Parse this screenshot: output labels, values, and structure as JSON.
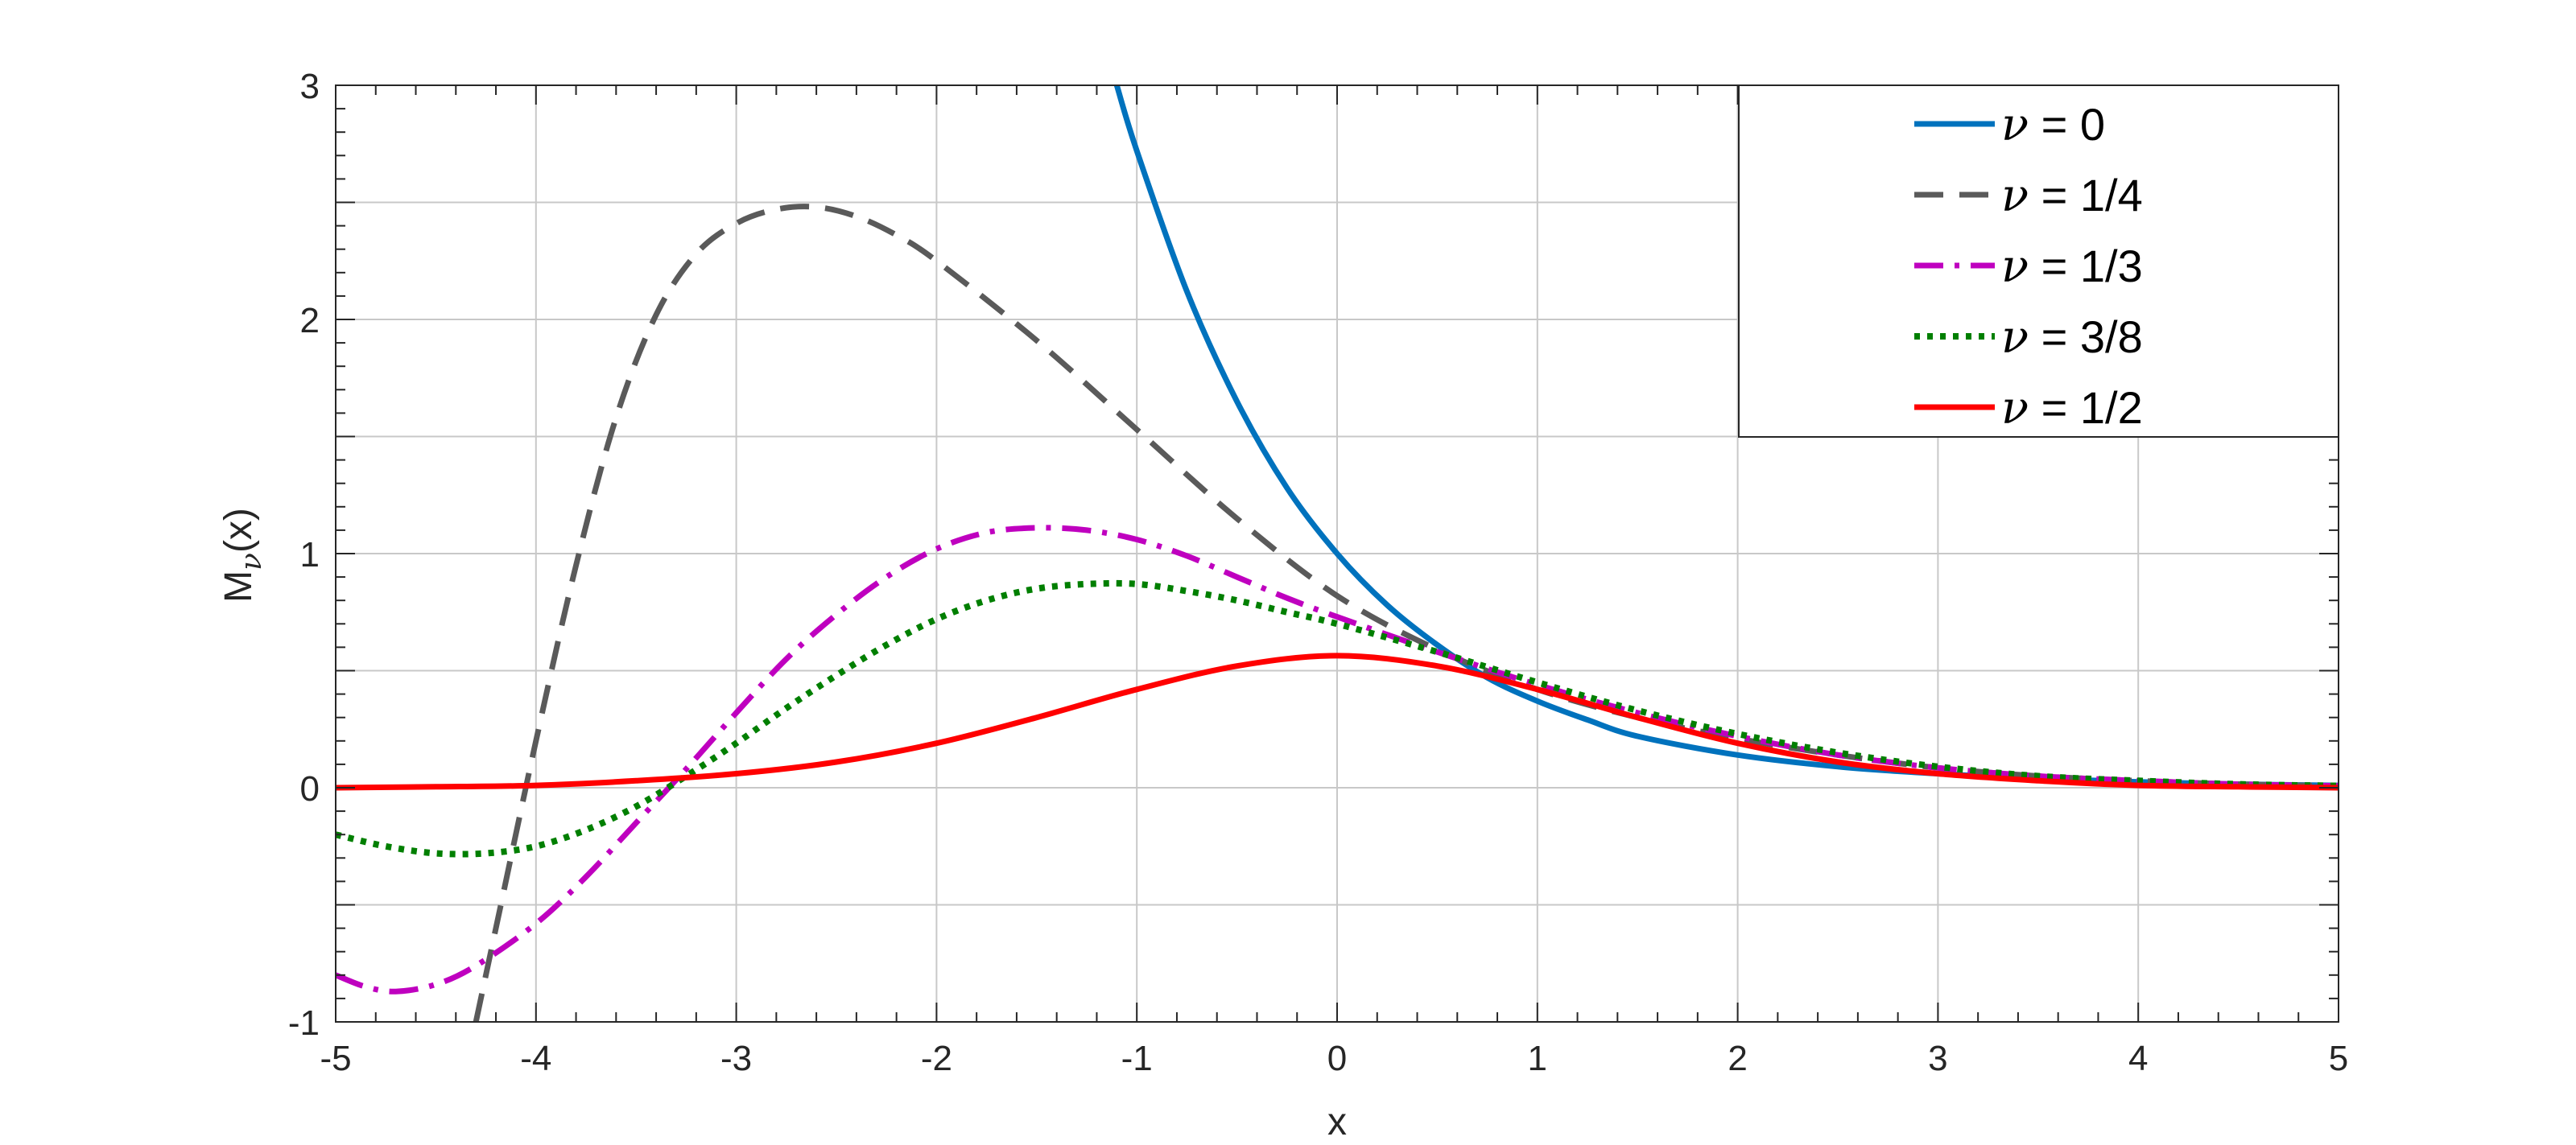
{
  "chart_data": {
    "type": "line",
    "title": "",
    "xlabel": "x",
    "ylabel": "M",
    "ylabel_subscript": "ν",
    "ylabel_suffix": "(x)",
    "xlim": [
      -5,
      5
    ],
    "ylim": [
      -1,
      3
    ],
    "x_ticks": [
      -5,
      -4,
      -3,
      -2,
      -1,
      0,
      1,
      2,
      3,
      4,
      5
    ],
    "y_ticks": [
      -1,
      0,
      1,
      2,
      3
    ],
    "x_tick_labels": [
      "-5",
      "-4",
      "-3",
      "-2",
      "-1",
      "0",
      "1",
      "2",
      "3",
      "4",
      "5"
    ],
    "y_tick_labels": [
      "-1",
      "0",
      "1",
      "2",
      "3"
    ],
    "grid": true,
    "minor_grid_y": [
      -0.5,
      0.5,
      1.5,
      2.5
    ],
    "legend_position": "top-right",
    "legend_symbol": "ν",
    "series": [
      {
        "name": "= 0",
        "color": "#0072BD",
        "style": "solid",
        "points": [
          [
            -1.1,
            3.0
          ],
          [
            -1.0,
            2.72
          ],
          [
            -0.75,
            2.12
          ],
          [
            -0.5,
            1.65
          ],
          [
            -0.25,
            1.28
          ],
          [
            0,
            1.0
          ],
          [
            0.25,
            0.78
          ],
          [
            0.5,
            0.61
          ],
          [
            0.75,
            0.47
          ],
          [
            1.0,
            0.37
          ],
          [
            1.25,
            0.29
          ],
          [
            1.5,
            0.22
          ],
          [
            2.0,
            0.14
          ],
          [
            2.5,
            0.09
          ],
          [
            3.0,
            0.06
          ],
          [
            3.5,
            0.04
          ],
          [
            4.0,
            0.025
          ],
          [
            4.5,
            0.015
          ],
          [
            5.0,
            0.01
          ]
        ]
      },
      {
        "name": "= 1/4",
        "color": "#5a5a5a",
        "style": "dashed",
        "points": [
          [
            -4.3,
            -1.0
          ],
          [
            -4.2,
            -0.6
          ],
          [
            -4.0,
            0.2
          ],
          [
            -3.8,
            0.95
          ],
          [
            -3.6,
            1.58
          ],
          [
            -3.4,
            2.02
          ],
          [
            -3.2,
            2.28
          ],
          [
            -3.0,
            2.41
          ],
          [
            -2.8,
            2.47
          ],
          [
            -2.6,
            2.48
          ],
          [
            -2.4,
            2.44
          ],
          [
            -2.2,
            2.36
          ],
          [
            -2.0,
            2.25
          ],
          [
            -1.5,
            1.91
          ],
          [
            -1.0,
            1.53
          ],
          [
            -0.5,
            1.15
          ],
          [
            0,
            0.82
          ],
          [
            0.5,
            0.59
          ],
          [
            1.0,
            0.42
          ],
          [
            1.5,
            0.3
          ],
          [
            2.0,
            0.21
          ],
          [
            2.5,
            0.14
          ],
          [
            3.0,
            0.085
          ],
          [
            3.5,
            0.05
          ],
          [
            4.0,
            0.03
          ],
          [
            4.5,
            0.015
          ],
          [
            5.0,
            0.008
          ]
        ]
      },
      {
        "name": "= 1/3",
        "color": "#BF00BF",
        "style": "dashdot",
        "points": [
          [
            -5.0,
            -0.8
          ],
          [
            -4.85,
            -0.85
          ],
          [
            -4.7,
            -0.87
          ],
          [
            -4.5,
            -0.84
          ],
          [
            -4.3,
            -0.76
          ],
          [
            -4.0,
            -0.58
          ],
          [
            -3.75,
            -0.38
          ],
          [
            -3.5,
            -0.15
          ],
          [
            -3.25,
            0.08
          ],
          [
            -3.0,
            0.32
          ],
          [
            -2.75,
            0.55
          ],
          [
            -2.5,
            0.74
          ],
          [
            -2.25,
            0.9
          ],
          [
            -2.0,
            1.02
          ],
          [
            -1.75,
            1.09
          ],
          [
            -1.5,
            1.11
          ],
          [
            -1.25,
            1.1
          ],
          [
            -1.0,
            1.06
          ],
          [
            -0.75,
            0.99
          ],
          [
            -0.5,
            0.9
          ],
          [
            -0.25,
            0.81
          ],
          [
            0,
            0.73
          ],
          [
            0.5,
            0.58
          ],
          [
            1.0,
            0.44
          ],
          [
            1.5,
            0.32
          ],
          [
            2.0,
            0.22
          ],
          [
            2.5,
            0.14
          ],
          [
            3.0,
            0.085
          ],
          [
            3.5,
            0.05
          ],
          [
            4.0,
            0.03
          ],
          [
            4.5,
            0.015
          ],
          [
            5.0,
            0.008
          ]
        ]
      },
      {
        "name": "= 3/8",
        "color": "#007F00",
        "style": "dotted",
        "points": [
          [
            -5.0,
            -0.2
          ],
          [
            -4.75,
            -0.25
          ],
          [
            -4.5,
            -0.28
          ],
          [
            -4.25,
            -0.28
          ],
          [
            -4.0,
            -0.25
          ],
          [
            -3.75,
            -0.18
          ],
          [
            -3.5,
            -0.08
          ],
          [
            -3.25,
            0.05
          ],
          [
            -3.0,
            0.19
          ],
          [
            -2.75,
            0.34
          ],
          [
            -2.5,
            0.48
          ],
          [
            -2.25,
            0.61
          ],
          [
            -2.0,
            0.72
          ],
          [
            -1.75,
            0.8
          ],
          [
            -1.5,
            0.85
          ],
          [
            -1.25,
            0.87
          ],
          [
            -1.0,
            0.87
          ],
          [
            -0.75,
            0.84
          ],
          [
            -0.5,
            0.8
          ],
          [
            -0.25,
            0.75
          ],
          [
            0,
            0.7
          ],
          [
            0.5,
            0.58
          ],
          [
            1.0,
            0.45
          ],
          [
            1.5,
            0.33
          ],
          [
            2.0,
            0.23
          ],
          [
            2.5,
            0.15
          ],
          [
            3.0,
            0.09
          ],
          [
            3.5,
            0.05
          ],
          [
            4.0,
            0.03
          ],
          [
            4.5,
            0.015
          ],
          [
            5.0,
            0.008
          ]
        ]
      },
      {
        "name": "= 1/2",
        "color": "#FF0000",
        "style": "solid",
        "points": [
          [
            -5.0,
            0.0
          ],
          [
            -4.5,
            0.004
          ],
          [
            -4.0,
            0.01
          ],
          [
            -3.5,
            0.03
          ],
          [
            -3.0,
            0.06
          ],
          [
            -2.5,
            0.11
          ],
          [
            -2.0,
            0.19
          ],
          [
            -1.5,
            0.3
          ],
          [
            -1.0,
            0.42
          ],
          [
            -0.5,
            0.52
          ],
          [
            0,
            0.564
          ],
          [
            0.5,
            0.52
          ],
          [
            1.0,
            0.42
          ],
          [
            1.5,
            0.3
          ],
          [
            2.0,
            0.19
          ],
          [
            2.5,
            0.11
          ],
          [
            3.0,
            0.06
          ],
          [
            3.5,
            0.03
          ],
          [
            4.0,
            0.01
          ],
          [
            4.5,
            0.004
          ],
          [
            5.0,
            0.0
          ]
        ]
      }
    ]
  }
}
